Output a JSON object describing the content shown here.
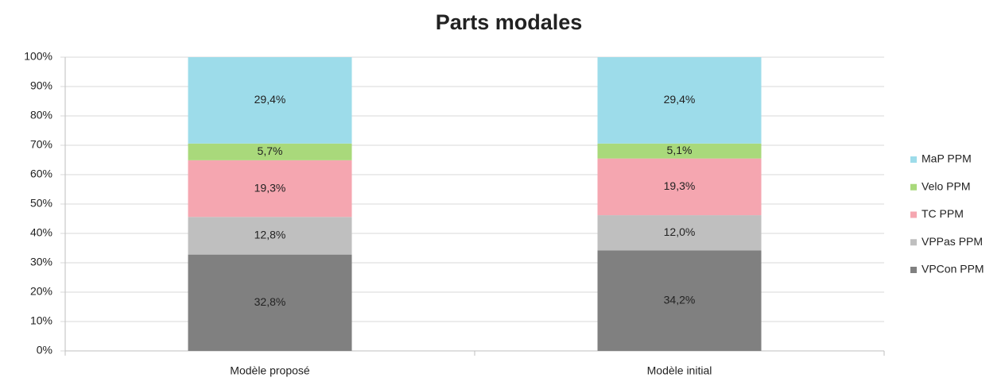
{
  "chart_data": {
    "type": "stacked_bar",
    "title": "Parts modales",
    "categories": [
      "Modèle proposé",
      "Modèle initial"
    ],
    "series": [
      {
        "name": "VPCon PPM",
        "color": "#808080",
        "values": [
          32.8,
          34.2
        ],
        "value_labels": [
          "32,8%",
          "34,2%"
        ]
      },
      {
        "name": "VPPas PPM",
        "color": "#bfbfbf",
        "values": [
          12.8,
          12.0
        ],
        "value_labels": [
          "12,8%",
          "12,0%"
        ]
      },
      {
        "name": "TC PPM",
        "color": "#f5a6b0",
        "values": [
          19.3,
          19.3
        ],
        "value_labels": [
          "19,3%",
          "19,3%"
        ]
      },
      {
        "name": "Velo PPM",
        "color": "#a9d97b",
        "values": [
          5.7,
          5.1
        ],
        "value_labels": [
          "5,7%",
          "5,1%"
        ]
      },
      {
        "name": "MaP PPM",
        "color": "#9ddcea",
        "values": [
          29.4,
          29.4
        ],
        "value_labels": [
          "29,4%",
          "29,4%"
        ]
      }
    ],
    "ylim": [
      0,
      100
    ],
    "yticks": [
      {
        "value": 0,
        "label": "0%"
      },
      {
        "value": 10,
        "label": "10%"
      },
      {
        "value": 20,
        "label": "20%"
      },
      {
        "value": 30,
        "label": "30%"
      },
      {
        "value": 40,
        "label": "40%"
      },
      {
        "value": 50,
        "label": "50%"
      },
      {
        "value": 60,
        "label": "60%"
      },
      {
        "value": 70,
        "label": "70%"
      },
      {
        "value": 80,
        "label": "80%"
      },
      {
        "value": 90,
        "label": "90%"
      },
      {
        "value": 100,
        "label": "100%"
      }
    ],
    "grid": true,
    "legend": "right"
  }
}
